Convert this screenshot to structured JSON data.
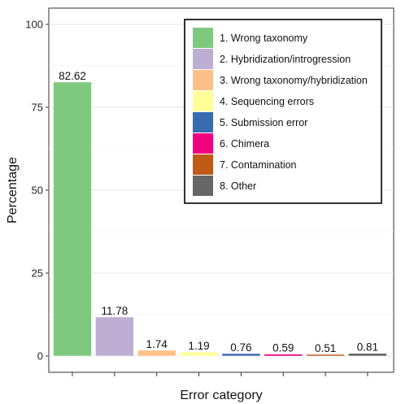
{
  "chart_data": {
    "type": "bar",
    "xlabel": "Error category",
    "ylabel": "Percentage",
    "ylim": [
      0,
      100
    ],
    "yticks": [
      0,
      25,
      50,
      75,
      100
    ],
    "grid": "horizontal",
    "legend_position": "top-right",
    "categories": [
      "1. Wrong taxonomy",
      "2. Hybridization/introgression",
      "3. Wrong taxonomy/hybridization",
      "4. Sequencing errors",
      "5. Submission error",
      "6. Chimera",
      "7. Contamination",
      "8. Other"
    ],
    "values": [
      82.62,
      11.78,
      1.74,
      1.19,
      0.76,
      0.59,
      0.51,
      0.81
    ],
    "value_labels": [
      "82.62",
      "11.78",
      "1.74",
      "1.19",
      "0.76",
      "0.59",
      "0.51",
      "0.81"
    ],
    "colors": [
      "#7fc97f",
      "#beaed4",
      "#fdc086",
      "#ffff99",
      "#386cb0",
      "#f0027f",
      "#bf5b17",
      "#666666"
    ]
  }
}
